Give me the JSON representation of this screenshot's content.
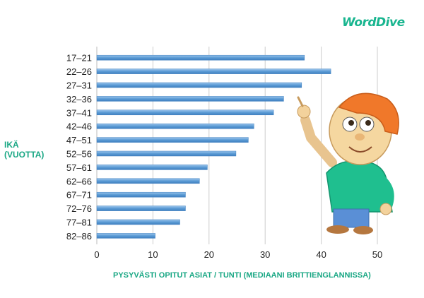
{
  "brand": {
    "logo_text": "WordDive"
  },
  "chart_data": {
    "type": "bar",
    "orientation": "horizontal",
    "title": "",
    "ylabel": "IKÄ\n(VUOTTA)",
    "xlabel": "PYSYVÄSTI OPITUT ASIAT / TUNTI (MEDIAANI BRITTIENGLANNISSA)",
    "categories": [
      "17–21",
      "22–26",
      "27–31",
      "32–36",
      "37–41",
      "42–46",
      "47–51",
      "52–56",
      "57–61",
      "62–66",
      "67–71",
      "72–76",
      "77–81",
      "82–86"
    ],
    "values": [
      37.0,
      41.7,
      36.5,
      33.3,
      31.5,
      28.0,
      27.0,
      24.8,
      19.7,
      18.3,
      15.8,
      15.8,
      14.8,
      10.4
    ],
    "xlim": [
      0,
      50
    ],
    "xticks": [
      0,
      10,
      20,
      30,
      40,
      50
    ],
    "grid": "vertical",
    "bar_color": "#5b9bd5"
  }
}
